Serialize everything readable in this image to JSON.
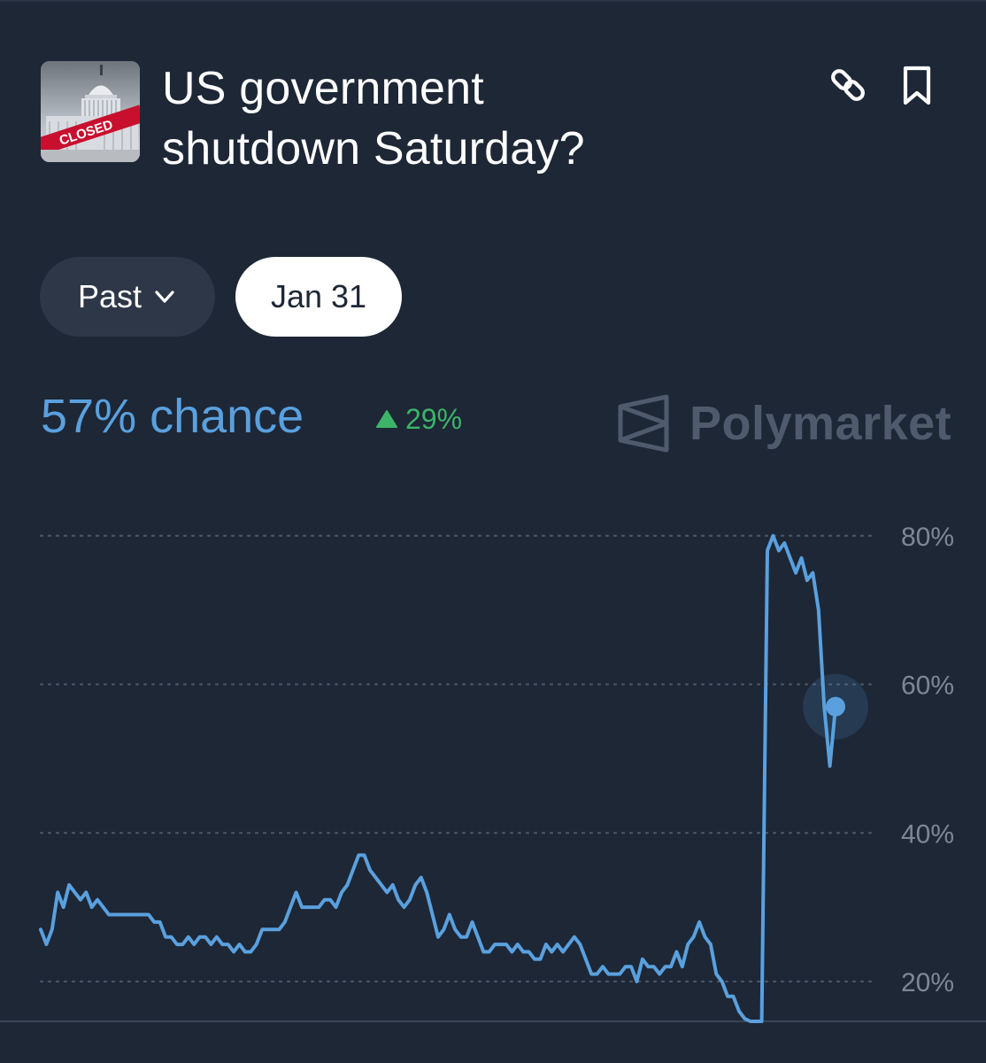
{
  "market": {
    "title_line1": "US government",
    "title_line2": "shutdown Saturday?",
    "thumbnail_badge": "CLOSED"
  },
  "filters": {
    "range_label": "Past",
    "date_label": "Jan 31"
  },
  "stats": {
    "chance_label": "57% chance",
    "change_label": "29%"
  },
  "brand": {
    "name": "Polymarket"
  },
  "colors": {
    "background": "#1d2736",
    "line": "#5aa0de",
    "positive": "#3db468",
    "grid": "#4a5566"
  },
  "icons": [
    "link-icon",
    "bookmark-icon",
    "chevron-down-icon",
    "up-triangle-icon",
    "polymarket-logo-icon"
  ],
  "chart_data": {
    "type": "line",
    "title": "",
    "xlabel": "",
    "ylabel": "",
    "y_unit": "%",
    "ylim": [
      14.5,
      80
    ],
    "yticks": [
      20,
      40,
      60,
      80
    ],
    "ytick_labels": [
      "20%",
      "40%",
      "60%",
      "80%"
    ],
    "grid": "dotted horizontal",
    "series": [
      {
        "current_value": 57,
        "values": [
          27,
          25,
          27,
          32,
          30,
          33,
          32,
          31,
          32,
          30,
          31,
          30,
          29,
          29,
          29,
          29,
          29,
          29,
          29,
          29,
          28,
          28,
          26,
          26,
          25,
          25,
          26,
          25,
          26,
          26,
          25,
          26,
          25,
          25,
          24,
          25,
          24,
          24,
          25,
          27,
          27,
          27,
          27,
          28,
          30,
          32,
          30,
          30,
          30,
          30,
          31,
          31,
          30,
          32,
          33,
          35,
          37,
          37,
          35,
          34,
          33,
          32,
          33,
          31,
          30,
          31,
          33,
          34,
          32,
          29,
          26,
          27,
          29,
          27,
          26,
          26,
          28,
          26,
          24,
          24,
          25,
          25,
          25,
          24,
          25,
          24,
          24,
          23,
          23,
          25,
          24,
          25,
          24,
          25,
          26,
          25,
          23,
          21,
          21,
          22,
          21,
          21,
          21,
          22,
          22,
          20,
          23,
          22,
          22,
          21,
          22,
          22,
          24,
          22,
          25,
          26,
          28,
          26,
          25,
          21,
          20,
          18,
          18,
          16,
          15,
          13,
          8,
          10,
          78,
          80,
          78,
          79,
          77,
          75,
          77,
          74,
          75,
          70,
          57,
          49,
          57
        ]
      }
    ]
  }
}
